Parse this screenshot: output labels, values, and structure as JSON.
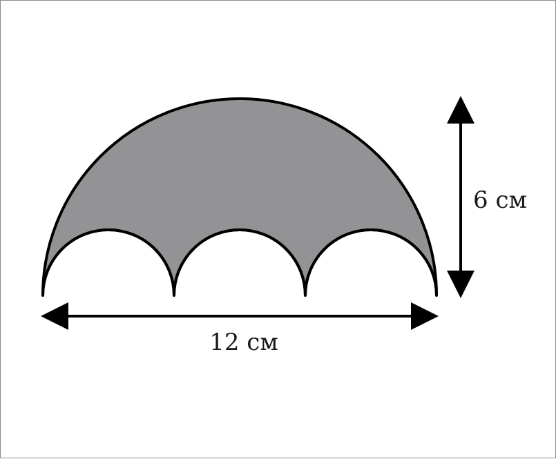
{
  "diagram": {
    "width_label": "12 см",
    "height_label": "6 см",
    "colors": {
      "shaded": "#939396",
      "stroke": "#000000",
      "background": "#ffffff"
    },
    "small_semicircle_count": 3
  }
}
